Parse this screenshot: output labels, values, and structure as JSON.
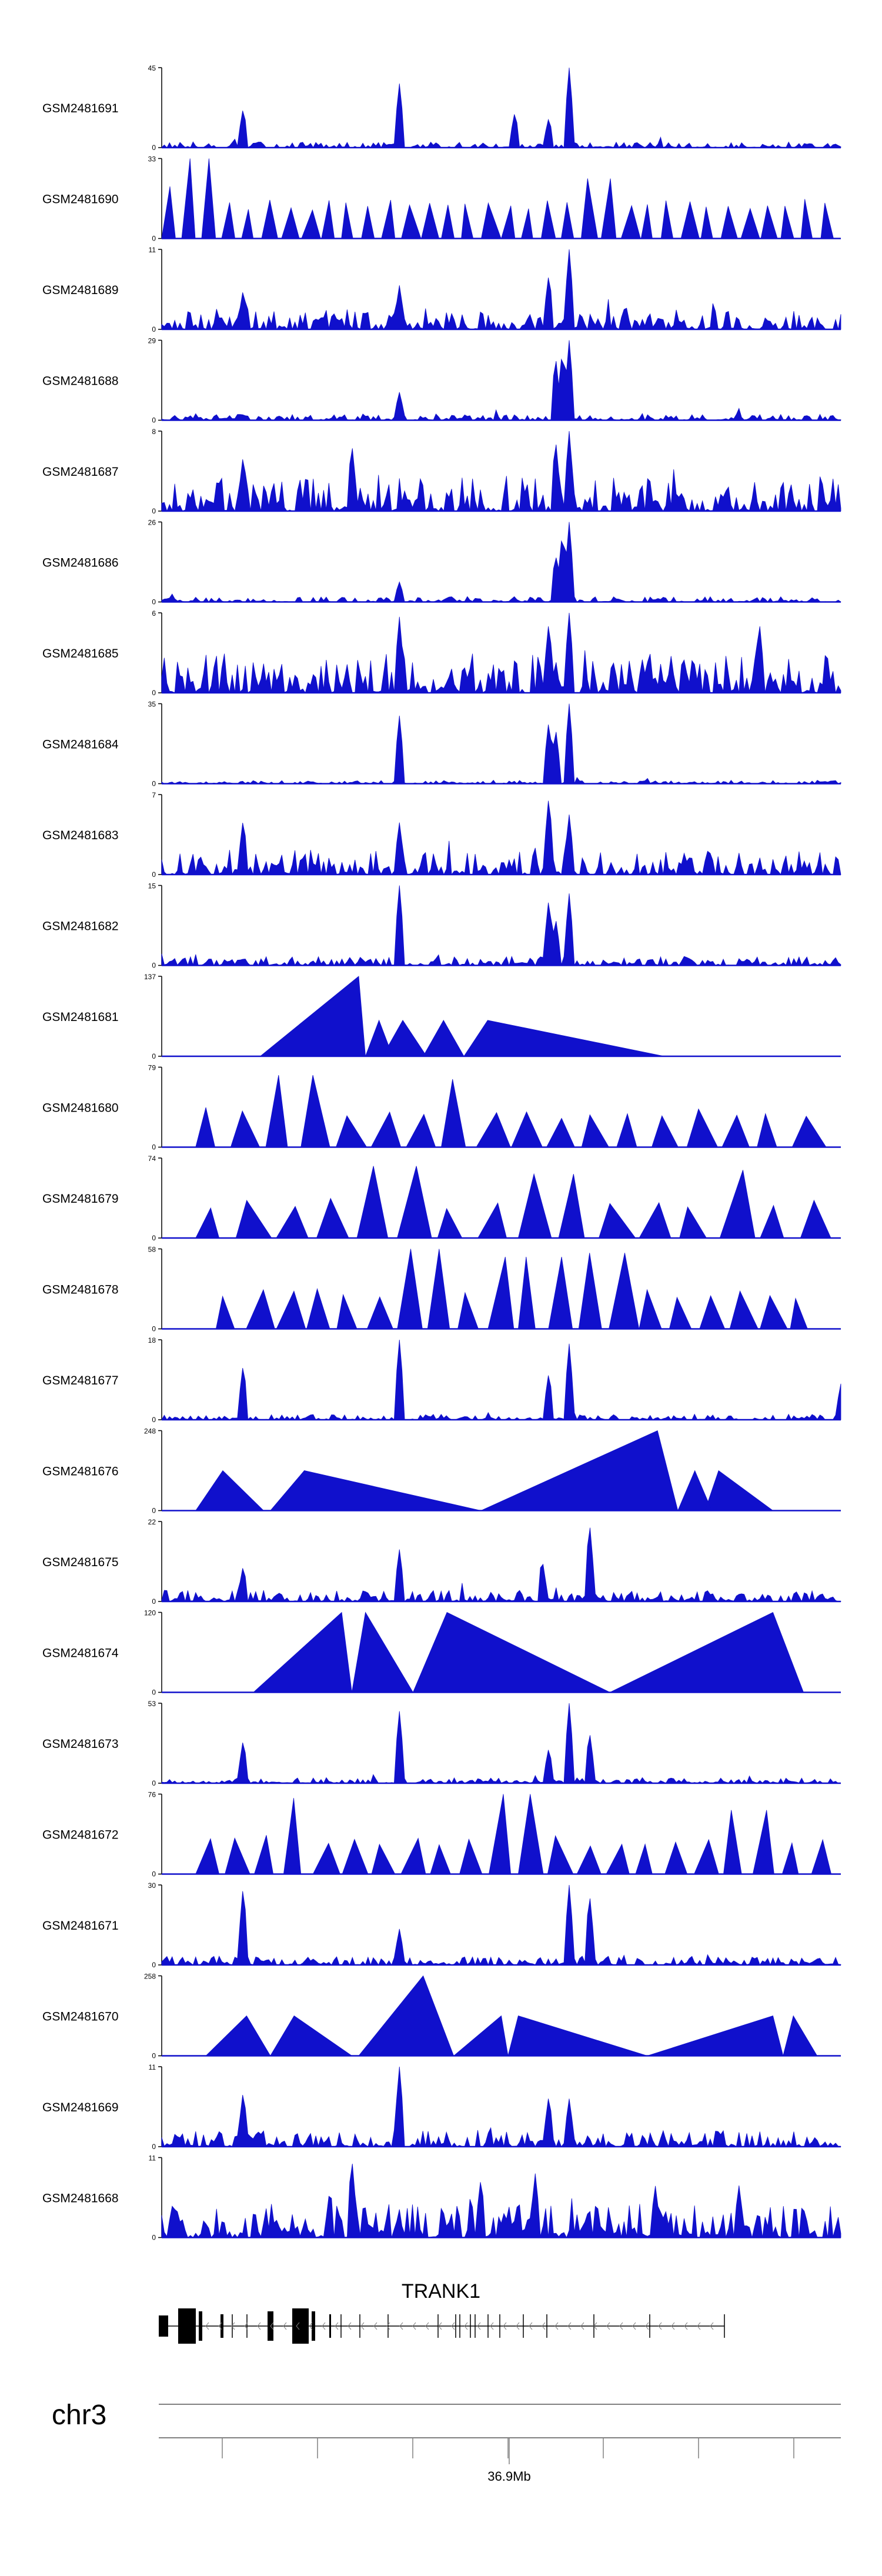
{
  "chart_data": {
    "type": "area",
    "title": "",
    "chromosome": "chr3",
    "position_label": "36.9Mb",
    "colors": {
      "signal": "#1010cc",
      "axis": "#000000",
      "gene": "#000000",
      "ruler": "#808080"
    },
    "x_domain": [
      0,
      1
    ],
    "gene": {
      "name": "TRANK1",
      "strand": "-"
    },
    "peak_positions": [
      0.12,
      0.35,
      0.52,
      0.57,
      0.6
    ],
    "series": [
      {
        "name": "GSM2481691",
        "ymax": 45,
        "ylim": [
          0,
          45
        ],
        "pattern": "dense",
        "base": 0.05,
        "spikes": [
          [
            0.35,
            0.8
          ],
          [
            0.6,
            1.0
          ],
          [
            0.52,
            0.45
          ],
          [
            0.57,
            0.38
          ],
          [
            0.12,
            0.5
          ]
        ]
      },
      {
        "name": "GSM2481690",
        "ymax": 33,
        "ylim": [
          0,
          33
        ],
        "pattern": "sparse",
        "count": 34,
        "start": 0.0,
        "end": 1.0,
        "tall": [
          [
            0.06,
            1.0
          ],
          [
            0.65,
            0.75
          ],
          [
            0.0,
            0.65
          ]
        ]
      },
      {
        "name": "GSM2481689",
        "ymax": 11,
        "ylim": [
          0,
          11
        ],
        "pattern": "dense",
        "base": 0.18,
        "spikes": [
          [
            0.6,
            1.0
          ],
          [
            0.57,
            0.7
          ],
          [
            0.35,
            0.55
          ],
          [
            0.12,
            0.5
          ]
        ]
      },
      {
        "name": "GSM2481688",
        "ymax": 29,
        "ylim": [
          0,
          29
        ],
        "pattern": "dense",
        "base": 0.06,
        "spikes": [
          [
            0.6,
            1.0
          ],
          [
            0.58,
            0.8
          ],
          [
            0.59,
            0.9
          ],
          [
            0.35,
            0.35
          ]
        ]
      },
      {
        "name": "GSM2481687",
        "ymax": 8,
        "ylim": [
          0,
          8
        ],
        "pattern": "dense",
        "base": 0.3,
        "spikes": [
          [
            0.6,
            1.0
          ],
          [
            0.58,
            0.9
          ],
          [
            0.28,
            0.85
          ],
          [
            0.12,
            0.7
          ]
        ]
      },
      {
        "name": "GSM2481686",
        "ymax": 26,
        "ylim": [
          0,
          26
        ],
        "pattern": "dense",
        "base": 0.05,
        "spikes": [
          [
            0.6,
            1.0
          ],
          [
            0.59,
            0.9
          ],
          [
            0.58,
            0.6
          ],
          [
            0.35,
            0.25
          ]
        ]
      },
      {
        "name": "GSM2481685",
        "ymax": 6,
        "ylim": [
          0,
          6
        ],
        "pattern": "dense",
        "base": 0.35,
        "spikes": [
          [
            0.6,
            1.0
          ],
          [
            0.35,
            0.95
          ],
          [
            0.88,
            0.9
          ],
          [
            0.57,
            0.9
          ]
        ]
      },
      {
        "name": "GSM2481684",
        "ymax": 35,
        "ylim": [
          0,
          35
        ],
        "pattern": "dense",
        "base": 0.03,
        "spikes": [
          [
            0.35,
            0.85
          ],
          [
            0.6,
            1.0
          ],
          [
            0.57,
            0.8
          ],
          [
            0.58,
            0.7
          ]
        ]
      },
      {
        "name": "GSM2481683",
        "ymax": 7,
        "ylim": [
          0,
          7
        ],
        "pattern": "dense",
        "base": 0.22,
        "spikes": [
          [
            0.57,
            1.0
          ],
          [
            0.35,
            0.65
          ],
          [
            0.12,
            0.7
          ],
          [
            0.6,
            0.75
          ]
        ]
      },
      {
        "name": "GSM2481682",
        "ymax": 15,
        "ylim": [
          0,
          15
        ],
        "pattern": "dense",
        "base": 0.08,
        "spikes": [
          [
            0.35,
            1.0
          ],
          [
            0.6,
            0.9
          ],
          [
            0.57,
            0.85
          ],
          [
            0.58,
            0.6
          ]
        ]
      },
      {
        "name": "GSM2481681",
        "ymax": 137,
        "ylim": [
          0,
          137
        ],
        "pattern": "tri",
        "triangles": [
          [
            0.145,
            0.29,
            0.3,
            1.0
          ],
          [
            0.3,
            0.32,
            0.34,
            0.45
          ],
          [
            0.325,
            0.355,
            0.39,
            0.45
          ],
          [
            0.385,
            0.415,
            0.445,
            0.45
          ],
          [
            0.445,
            0.48,
            0.74,
            0.45
          ]
        ]
      },
      {
        "name": "GSM2481680",
        "ymax": 79,
        "ylim": [
          0,
          79
        ],
        "pattern": "sparse",
        "count": 18,
        "start": 0.05,
        "end": 0.98,
        "tall": [
          [
            0.2,
            0.9
          ],
          [
            0.44,
            0.85
          ]
        ]
      },
      {
        "name": "GSM2481679",
        "ymax": 74,
        "ylim": [
          0,
          74
        ],
        "pattern": "sparse",
        "count": 16,
        "start": 0.05,
        "end": 1.0,
        "tall": [
          [
            0.36,
            0.9
          ],
          [
            0.56,
            0.8
          ],
          [
            0.84,
            0.85
          ]
        ]
      },
      {
        "name": "GSM2481678",
        "ymax": 58,
        "ylim": [
          0,
          58
        ],
        "pattern": "sparse",
        "count": 20,
        "start": 0.08,
        "end": 0.97,
        "tall": [
          [
            0.38,
            1.0
          ],
          [
            0.55,
            0.9
          ],
          [
            0.66,
            0.95
          ]
        ]
      },
      {
        "name": "GSM2481677",
        "ymax": 18,
        "ylim": [
          0,
          18
        ],
        "pattern": "dense",
        "base": 0.05,
        "spikes": [
          [
            0.35,
            1.0
          ],
          [
            0.6,
            0.95
          ],
          [
            0.12,
            0.7
          ],
          [
            0.57,
            0.6
          ],
          [
            1.0,
            0.45
          ]
        ]
      },
      {
        "name": "GSM2481676",
        "ymax": 248,
        "ylim": [
          0,
          248
        ],
        "pattern": "tri",
        "triangles": [
          [
            0.05,
            0.09,
            0.15,
            0.5
          ],
          [
            0.16,
            0.21,
            0.47,
            0.5
          ],
          [
            0.47,
            0.73,
            0.76,
            1.0
          ],
          [
            0.76,
            0.785,
            0.81,
            0.5
          ],
          [
            0.8,
            0.82,
            0.9,
            0.5
          ]
        ]
      },
      {
        "name": "GSM2481675",
        "ymax": 22,
        "ylim": [
          0,
          22
        ],
        "pattern": "dense",
        "base": 0.1,
        "spikes": [
          [
            0.63,
            1.0
          ],
          [
            0.35,
            0.65
          ],
          [
            0.56,
            0.55
          ],
          [
            0.12,
            0.45
          ]
        ]
      },
      {
        "name": "GSM2481674",
        "ymax": 120,
        "ylim": [
          0,
          120
        ],
        "pattern": "tri",
        "triangles": [
          [
            0.135,
            0.265,
            0.28,
            1.0
          ],
          [
            0.28,
            0.3,
            0.37,
            1.0
          ],
          [
            0.37,
            0.42,
            0.66,
            1.0
          ],
          [
            0.66,
            0.9,
            0.945,
            1.0
          ]
        ]
      },
      {
        "name": "GSM2481673",
        "ymax": 53,
        "ylim": [
          0,
          53
        ],
        "pattern": "dense",
        "base": 0.05,
        "spikes": [
          [
            0.6,
            1.0
          ],
          [
            0.35,
            0.9
          ],
          [
            0.63,
            0.65
          ],
          [
            0.57,
            0.45
          ],
          [
            0.12,
            0.55
          ]
        ]
      },
      {
        "name": "GSM2481672",
        "ymax": 76,
        "ylim": [
          0,
          76
        ],
        "pattern": "sparse",
        "count": 22,
        "start": 0.05,
        "end": 1.0,
        "tall": [
          [
            0.53,
            1.0
          ],
          [
            0.2,
            0.95
          ],
          [
            0.87,
            0.8
          ]
        ]
      },
      {
        "name": "GSM2481671",
        "ymax": 30,
        "ylim": [
          0,
          30
        ],
        "pattern": "dense",
        "base": 0.08,
        "spikes": [
          [
            0.12,
            1.0
          ],
          [
            0.6,
            1.0
          ],
          [
            0.63,
            0.9
          ],
          [
            0.35,
            0.45
          ]
        ]
      },
      {
        "name": "GSM2481670",
        "ymax": 258,
        "ylim": [
          0,
          258
        ],
        "pattern": "tri",
        "triangles": [
          [
            0.065,
            0.125,
            0.16,
            0.5
          ],
          [
            0.16,
            0.195,
            0.28,
            0.5
          ],
          [
            0.29,
            0.385,
            0.43,
            1.0
          ],
          [
            0.43,
            0.5,
            0.51,
            0.5
          ],
          [
            0.51,
            0.525,
            0.715,
            0.5
          ],
          [
            0.715,
            0.9,
            0.915,
            0.5
          ],
          [
            0.915,
            0.93,
            0.965,
            0.5
          ]
        ]
      },
      {
        "name": "GSM2481669",
        "ymax": 11,
        "ylim": [
          0,
          11
        ],
        "pattern": "dense",
        "base": 0.15,
        "spikes": [
          [
            0.35,
            1.0
          ],
          [
            0.12,
            0.7
          ],
          [
            0.57,
            0.65
          ],
          [
            0.6,
            0.6
          ]
        ]
      },
      {
        "name": "GSM2481668",
        "ymax": 11,
        "ylim": [
          0,
          11
        ],
        "pattern": "dense",
        "base": 0.3,
        "spikes": [
          [
            0.28,
            1.0
          ],
          [
            0.55,
            0.8
          ],
          [
            0.47,
            0.75
          ],
          [
            0.85,
            0.65
          ]
        ]
      }
    ]
  }
}
